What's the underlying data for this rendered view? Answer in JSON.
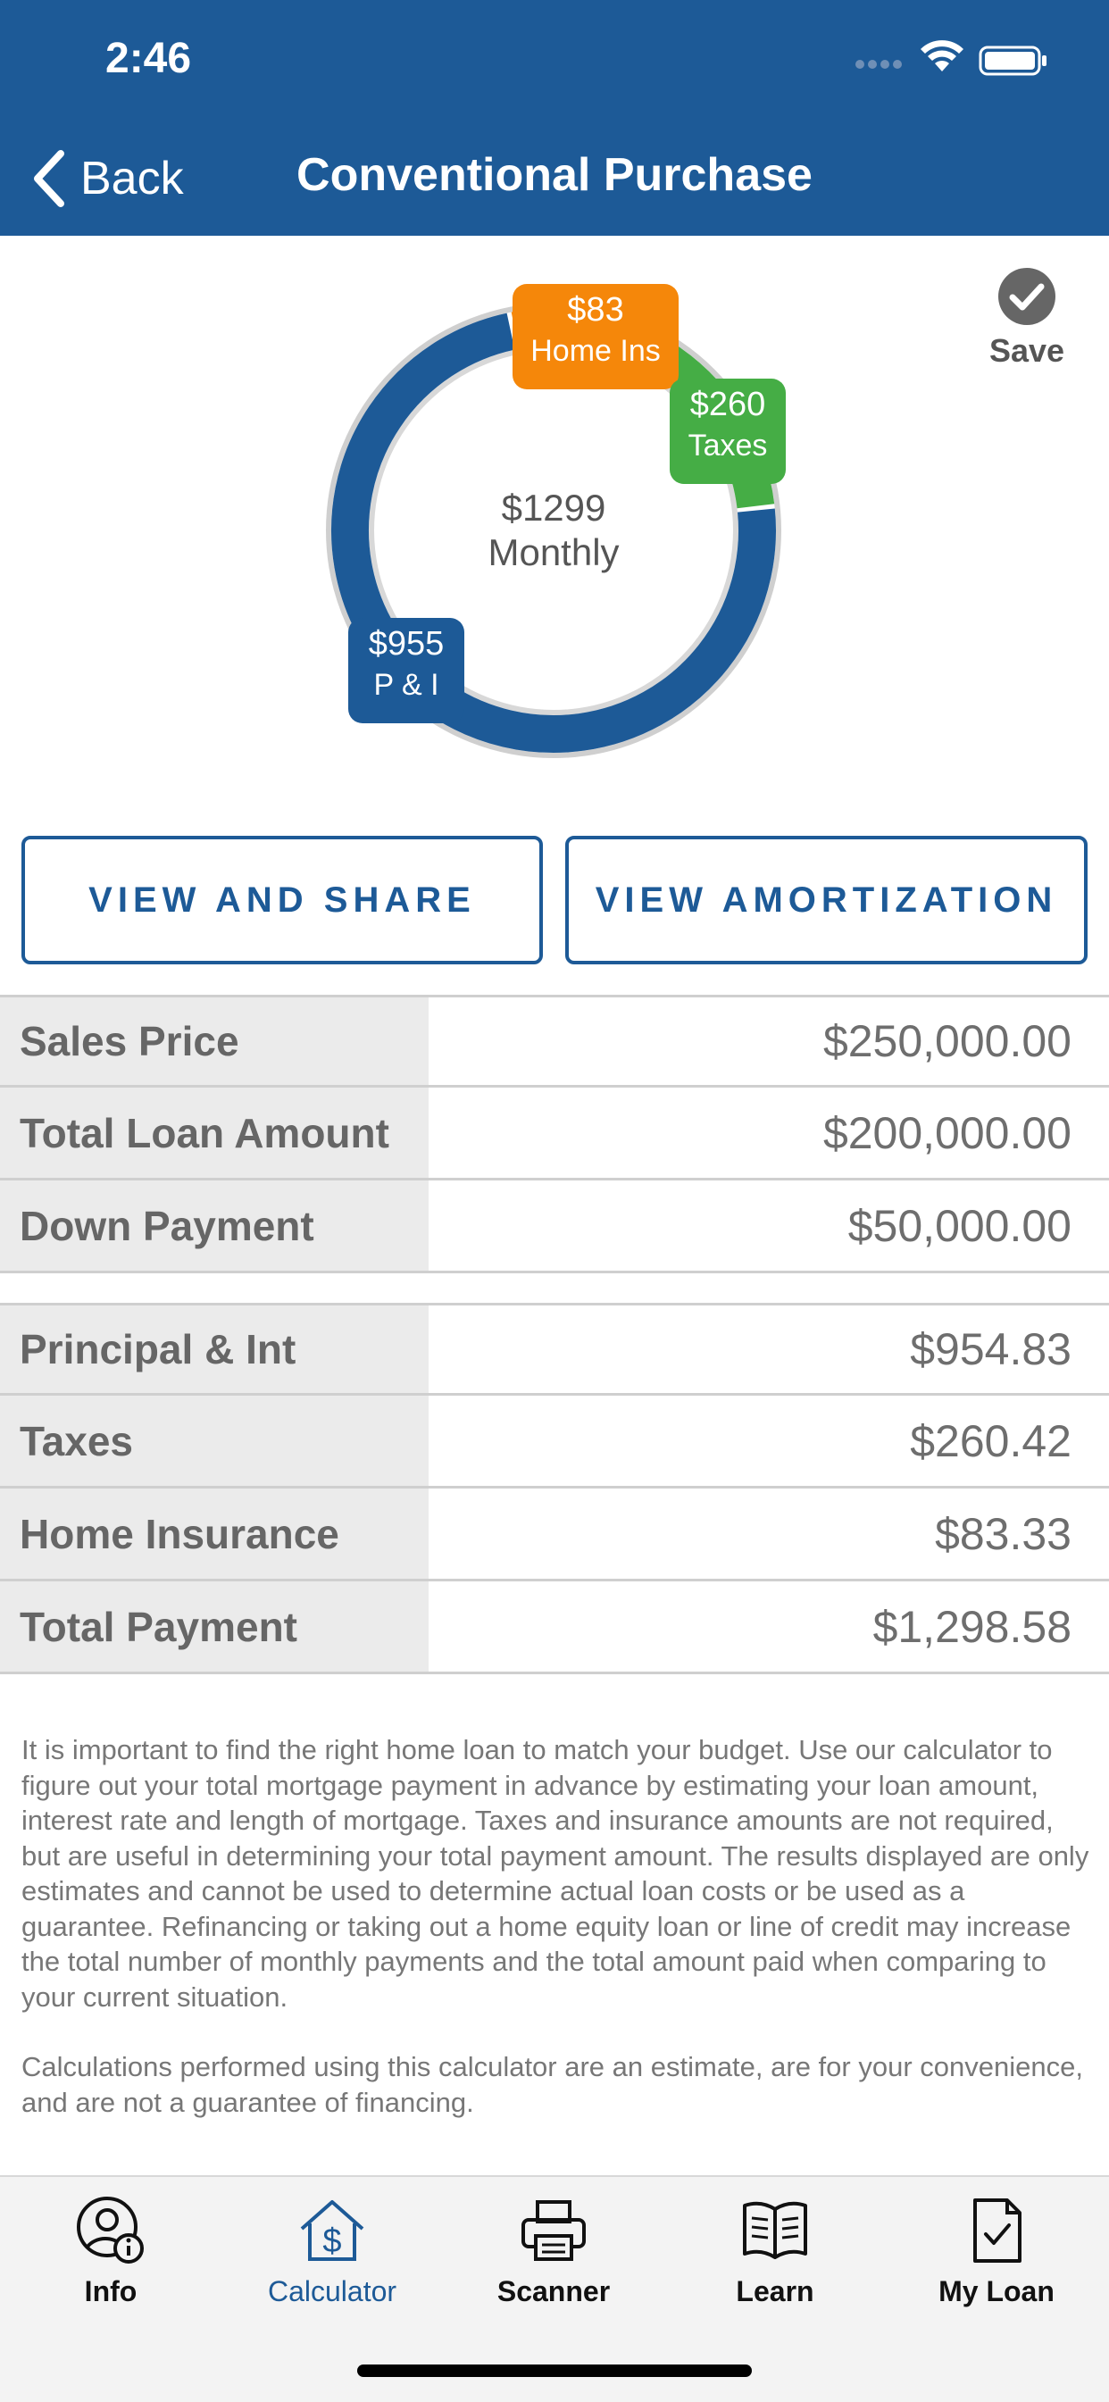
{
  "status_bar": {
    "time": "2:46"
  },
  "nav": {
    "back_label": "Back",
    "title": "Conventional Purchase"
  },
  "chart": {
    "total_amount": "$1299",
    "total_caption": "Monthly",
    "slices": [
      {
        "key": "pi",
        "amount": "$955",
        "caption": "P & I",
        "value": 954.83,
        "color": "#1d5a97"
      },
      {
        "key": "taxes",
        "amount": "$260",
        "caption": "Taxes",
        "value": 260.42,
        "color": "#45ad45"
      },
      {
        "key": "ins",
        "amount": "$83",
        "caption": "Home Ins",
        "value": 83.33,
        "color": "#f5870a"
      }
    ],
    "save_label": "Save"
  },
  "buttons": {
    "share": "VIEW AND SHARE",
    "amortization": "VIEW AMORTIZATION"
  },
  "loan_table": [
    {
      "label": "Sales Price",
      "value": "$250,000.00"
    },
    {
      "label": "Total Loan Amount",
      "value": "$200,000.00"
    },
    {
      "label": "Down Payment",
      "value": "$50,000.00"
    }
  ],
  "payment_table": [
    {
      "label": "Principal & Int",
      "value": "$954.83"
    },
    {
      "label": "Taxes",
      "value": "$260.42"
    },
    {
      "label": "Home Insurance",
      "value": "$83.33"
    },
    {
      "label": "Total Payment",
      "value": "$1,298.58"
    }
  ],
  "disclaimer": {
    "paragraph1": "It is important to find the right home loan to match your budget. Use our calculator to figure out your total mortgage payment in advance by estimating your loan amount, interest rate and length of mortgage. Taxes and insurance amounts are not required, but are useful in determining your total payment amount.  The results displayed are only estimates and cannot be used to determine actual loan costs or be used as a guarantee. Refinancing or taking out a home equity loan or line of credit may increase the total number of monthly payments and the total amount paid when comparing to your current situation.",
    "paragraph2": "Calculations performed using this calculator are an estimate, are for your convenience, and are not a guarantee of financing."
  },
  "tabs": [
    {
      "label": "Info",
      "icon": "user-info-icon"
    },
    {
      "label": "Calculator",
      "icon": "house-dollar-icon",
      "active": true
    },
    {
      "label": "Scanner",
      "icon": "printer-icon"
    },
    {
      "label": "Learn",
      "icon": "open-book-icon"
    },
    {
      "label": "My Loan",
      "icon": "document-check-icon"
    }
  ],
  "colors": {
    "brand": "#1d5a97",
    "taxes": "#45ad45",
    "insurance": "#f5870a"
  }
}
